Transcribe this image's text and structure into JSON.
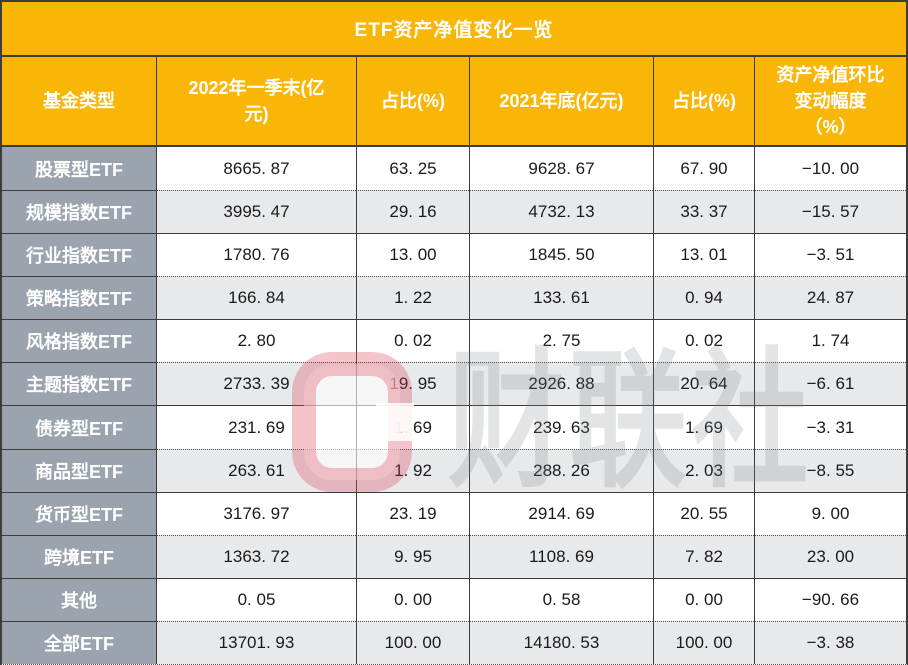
{
  "title": "ETF资产净值变化一览",
  "table": {
    "columns": [
      "基金类型",
      "2022年一季末(亿\n元)",
      "占比(%)",
      "2021年底(亿元)",
      "占比(%)",
      "资产净值环比\n变动幅度\n（%）"
    ],
    "rows": [
      {
        "category": "股票型ETF",
        "shaded": false,
        "values": [
          "8665. 87",
          "63. 25",
          "9628. 67",
          "67. 90",
          "−10. 00"
        ]
      },
      {
        "category": "规模指数ETF",
        "shaded": true,
        "values": [
          "3995. 47",
          "29. 16",
          "4732. 13",
          "33. 37",
          "−15. 57"
        ]
      },
      {
        "category": "行业指数ETF",
        "shaded": false,
        "values": [
          "1780. 76",
          "13. 00",
          "1845. 50",
          "13. 01",
          "−3. 51"
        ]
      },
      {
        "category": "策略指数ETF",
        "shaded": true,
        "values": [
          "166. 84",
          "1. 22",
          "133. 61",
          "0. 94",
          "24. 87"
        ]
      },
      {
        "category": "风格指数ETF",
        "shaded": false,
        "values": [
          "2. 80",
          "0. 02",
          "2. 75",
          "0. 02",
          "1. 74"
        ]
      },
      {
        "category": "主题指数ETF",
        "shaded": true,
        "values": [
          "2733. 39",
          "19. 95",
          "2926. 88",
          "20. 64",
          "−6. 61"
        ]
      },
      {
        "category": "债券型ETF",
        "shaded": false,
        "values": [
          "231. 69",
          "1. 69",
          "239. 63",
          "1. 69",
          "−3. 31"
        ]
      },
      {
        "category": "商品型ETF",
        "shaded": true,
        "values": [
          "263. 61",
          "1. 92",
          "288. 26",
          "2. 03",
          "−8. 55"
        ]
      },
      {
        "category": "货币型ETF",
        "shaded": false,
        "values": [
          "3176. 97",
          "23. 19",
          "2914. 69",
          "20. 55",
          "9. 00"
        ]
      },
      {
        "category": "跨境ETF",
        "shaded": true,
        "values": [
          "1363. 72",
          "9. 95",
          "1108. 69",
          "7. 82",
          "23. 00"
        ]
      },
      {
        "category": "其他",
        "shaded": false,
        "values": [
          "0. 05",
          "0. 00",
          "0. 58",
          "0. 00",
          "−90. 66"
        ]
      },
      {
        "category": "全部ETF",
        "shaded": true,
        "values": [
          "13701. 93",
          "100. 00",
          "14180. 53",
          "100. 00",
          "−3. 38"
        ]
      }
    ]
  },
  "watermark": {
    "text": "财联社"
  },
  "colors": {
    "header_bg": "#F9B606",
    "category_bg": "#9AA3AE",
    "stripe_bg": "#E8E9EB",
    "border": "#3C3C3C",
    "header_text": "#FFFFFF",
    "cell_text": "#1A1A1A",
    "watermark_red": "#E1465C",
    "watermark_gray": "#7D8288"
  },
  "chart_data": {
    "type": "table",
    "title": "ETF资产净值变化一览",
    "columns": [
      "基金类型",
      "2022年一季末(亿元)",
      "占比(%)",
      "2021年底(亿元)",
      "占比(%)",
      "资产净值环比变动幅度(%)"
    ],
    "rows": [
      [
        "股票型ETF",
        8665.87,
        63.25,
        9628.67,
        67.9,
        -10.0
      ],
      [
        "规模指数ETF",
        3995.47,
        29.16,
        4732.13,
        33.37,
        -15.57
      ],
      [
        "行业指数ETF",
        1780.76,
        13.0,
        1845.5,
        13.01,
        -3.51
      ],
      [
        "策略指数ETF",
        166.84,
        1.22,
        133.61,
        0.94,
        24.87
      ],
      [
        "风格指数ETF",
        2.8,
        0.02,
        2.75,
        0.02,
        1.74
      ],
      [
        "主题指数ETF",
        2733.39,
        19.95,
        2926.88,
        20.64,
        -6.61
      ],
      [
        "债券型ETF",
        231.69,
        1.69,
        239.63,
        1.69,
        -3.31
      ],
      [
        "商品型ETF",
        263.61,
        1.92,
        288.26,
        2.03,
        -8.55
      ],
      [
        "货币型ETF",
        3176.97,
        23.19,
        2914.69,
        20.55,
        9.0
      ],
      [
        "跨境ETF",
        1363.72,
        9.95,
        1108.69,
        7.82,
        23.0
      ],
      [
        "其他",
        0.05,
        0.0,
        0.58,
        0.0,
        -90.66
      ],
      [
        "全部ETF",
        13701.93,
        100.0,
        14180.53,
        100.0,
        -3.38
      ]
    ]
  }
}
